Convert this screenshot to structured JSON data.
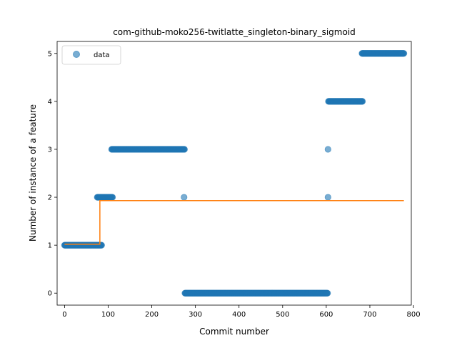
{
  "chart_data": {
    "type": "scatter",
    "title": "com-github-moko256-twitlatte_singleton-binary_sigmoid",
    "xlabel": "Commit number",
    "ylabel": "Number of instance of a feature",
    "xlim": [
      -17,
      795
    ],
    "ylim": [
      -0.25,
      5.25
    ],
    "xticks": [
      0,
      100,
      200,
      300,
      400,
      500,
      600,
      700,
      800
    ],
    "yticks": [
      0,
      1,
      2,
      3,
      4,
      5
    ],
    "grid": false,
    "legend": {
      "placement": "top-left",
      "entries": [
        "data"
      ]
    },
    "colors": {
      "data": "#1f77b4",
      "fit": "#ff7f0e"
    },
    "series": [
      {
        "name": "data",
        "kind": "scatter",
        "segments": [
          {
            "y": 1,
            "x_start": 0,
            "x_end": 85
          },
          {
            "y": 2,
            "x_start": 75,
            "x_end": 110
          },
          {
            "y": 3,
            "x_start": 108,
            "x_end": 275
          },
          {
            "y": 0,
            "x_start": 276,
            "x_end": 603
          },
          {
            "y": 4,
            "x_start": 605,
            "x_end": 683
          },
          {
            "y": 5,
            "x_start": 682,
            "x_end": 778
          }
        ],
        "points": [
          {
            "x": 274,
            "y": 2
          },
          {
            "x": 604,
            "y": 3
          },
          {
            "x": 604,
            "y": 2
          }
        ]
      },
      {
        "kind": "line",
        "x": [
          0,
          81,
          81,
          778
        ],
        "y": [
          1.02,
          1.02,
          1.93,
          1.93
        ]
      }
    ]
  }
}
